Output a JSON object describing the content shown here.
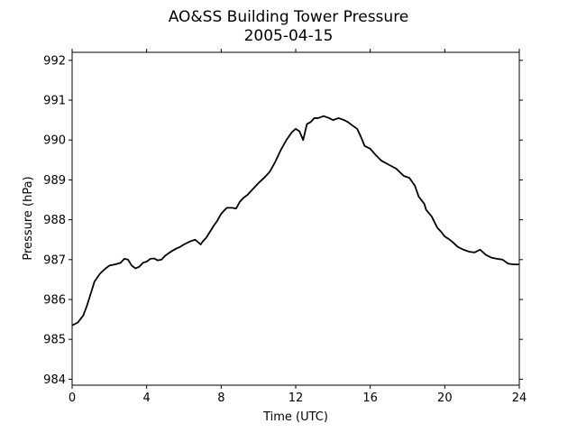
{
  "chart_data": {
    "type": "line",
    "title": "AO&SS Building Tower Pressure",
    "subtitle": "2005-04-15",
    "xlabel": "Time (UTC)",
    "ylabel": "Pressure (hPa)",
    "xlim": [
      0,
      24
    ],
    "ylim": [
      983.85,
      992.2
    ],
    "x_ticks": [
      0,
      4,
      8,
      12,
      16,
      20,
      24
    ],
    "y_ticks": [
      984,
      985,
      986,
      987,
      988,
      989,
      990,
      991,
      992
    ],
    "grid": false,
    "legend": "none",
    "line_color": "#000000",
    "series": [
      {
        "x": [
          0,
          0.3,
          0.6,
          0.8,
          1.0,
          1.2,
          1.5,
          1.8,
          2.0,
          2.3,
          2.6,
          2.8,
          3.0,
          3.2,
          3.4,
          3.6,
          3.8,
          4.0,
          4.2,
          4.4,
          4.6,
          4.8,
          5.0,
          5.3,
          5.6,
          5.8,
          6.0,
          6.3,
          6.6,
          6.9,
          7.0,
          7.2,
          7.4,
          7.6,
          7.8,
          8.0,
          8.3,
          8.6,
          8.8,
          9.0,
          9.2,
          9.4,
          9.6,
          9.8,
          10.0,
          10.3,
          10.6,
          10.9,
          11.2,
          11.5,
          11.8,
          12.0,
          12.2,
          12.4,
          12.6,
          12.8,
          13.0,
          13.2,
          13.5,
          13.8,
          14.0,
          14.3,
          14.6,
          14.8,
          15.0,
          15.3,
          15.5,
          15.7,
          16.0,
          16.3,
          16.6,
          17.0,
          17.4,
          17.8,
          18.1,
          18.4,
          18.6,
          18.9,
          19.0,
          19.3,
          19.6,
          19.8,
          20.0,
          20.2,
          20.4,
          20.7,
          21.0,
          21.3,
          21.6,
          21.9,
          22.2,
          22.5,
          22.8,
          23.1,
          23.4,
          23.7,
          24.0
        ],
        "y": [
          985.35,
          985.42,
          985.6,
          985.85,
          986.15,
          986.45,
          986.65,
          986.78,
          986.85,
          986.88,
          986.92,
          987.02,
          987.0,
          986.85,
          986.78,
          986.82,
          986.92,
          986.95,
          987.02,
          987.03,
          986.98,
          987.0,
          987.1,
          987.2,
          987.28,
          987.32,
          987.38,
          987.45,
          987.5,
          987.38,
          987.45,
          987.55,
          987.7,
          987.85,
          987.98,
          988.15,
          988.3,
          988.3,
          988.28,
          988.45,
          988.55,
          988.62,
          988.72,
          988.82,
          988.92,
          989.05,
          989.2,
          989.45,
          989.75,
          990.0,
          990.2,
          990.28,
          990.22,
          990.0,
          990.4,
          990.45,
          990.55,
          990.55,
          990.6,
          990.55,
          990.5,
          990.55,
          990.5,
          990.45,
          990.38,
          990.28,
          990.08,
          989.85,
          989.78,
          989.62,
          989.48,
          989.38,
          989.28,
          989.1,
          989.05,
          988.85,
          988.58,
          988.4,
          988.25,
          988.08,
          987.8,
          987.7,
          987.58,
          987.52,
          987.45,
          987.32,
          987.25,
          987.2,
          987.18,
          987.25,
          987.12,
          987.05,
          987.02,
          987.0,
          986.9,
          986.88,
          986.88
        ]
      }
    ]
  }
}
